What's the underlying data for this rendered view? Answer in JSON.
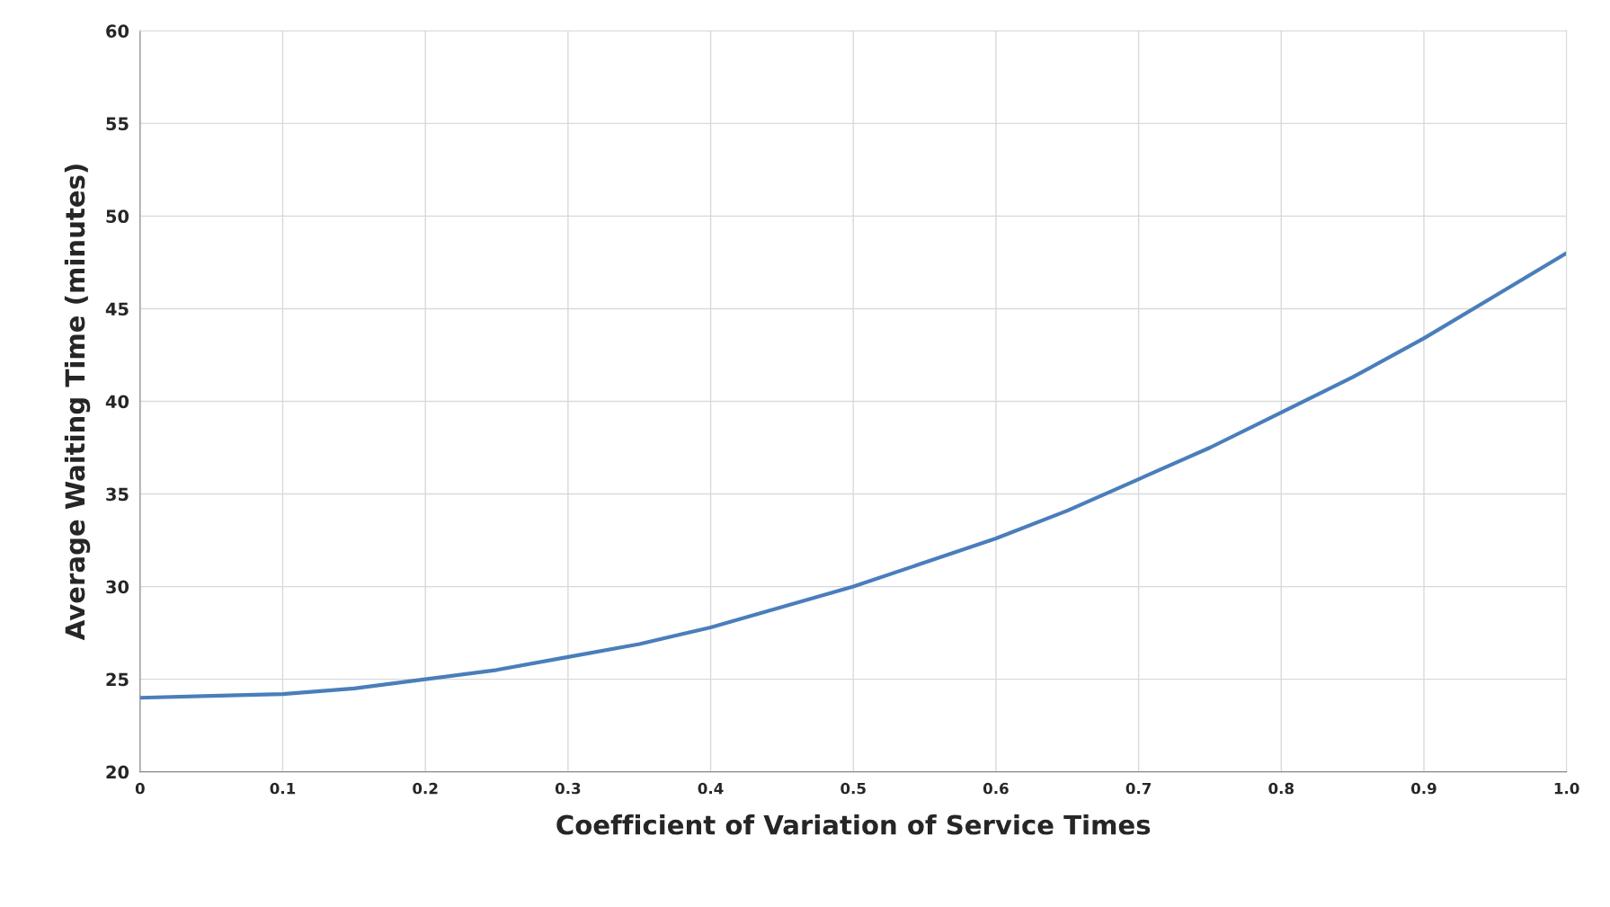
{
  "chart_data": {
    "type": "line",
    "xlabel": "Coefficient of Variation of Service Times",
    "ylabel": "Average Waiting Time (minutes)",
    "x": [
      0,
      0.05,
      0.1,
      0.15,
      0.2,
      0.25,
      0.3,
      0.35,
      0.4,
      0.45,
      0.5,
      0.55,
      0.6,
      0.65,
      0.7,
      0.75,
      0.8,
      0.85,
      0.9,
      0.95,
      1.0
    ],
    "series": [
      {
        "color": "#4a7ebb",
        "values": [
          24.0,
          24.1,
          24.2,
          24.5,
          25.0,
          25.5,
          26.2,
          26.9,
          27.8,
          28.9,
          30.0,
          31.3,
          32.6,
          34.1,
          35.8,
          37.5,
          39.4,
          41.3,
          43.4,
          45.7,
          48.0
        ]
      }
    ],
    "xlim": [
      0,
      1.0
    ],
    "ylim": [
      20,
      60
    ],
    "xticks": [
      0,
      {
        "value": 0.1,
        "label": "0.1"
      },
      {
        "value": 0.2,
        "label": "0.2"
      },
      {
        "value": 0.3,
        "label": "0.3"
      },
      {
        "value": 0.4,
        "label": "0.4"
      },
      {
        "value": 0.5,
        "label": "0.5"
      },
      {
        "value": 0.6,
        "label": "0.6"
      },
      {
        "value": 0.7,
        "label": "0.7"
      },
      {
        "value": 0.8,
        "label": "0.8"
      },
      {
        "value": 0.9,
        "label": "0.9"
      },
      {
        "value": 1.0,
        "label": "1.0"
      }
    ],
    "yticks": [
      20,
      25,
      30,
      35,
      40,
      45,
      50,
      55,
      60
    ],
    "grid": true,
    "legend": false,
    "marker": "none",
    "line_style": "solid"
  }
}
